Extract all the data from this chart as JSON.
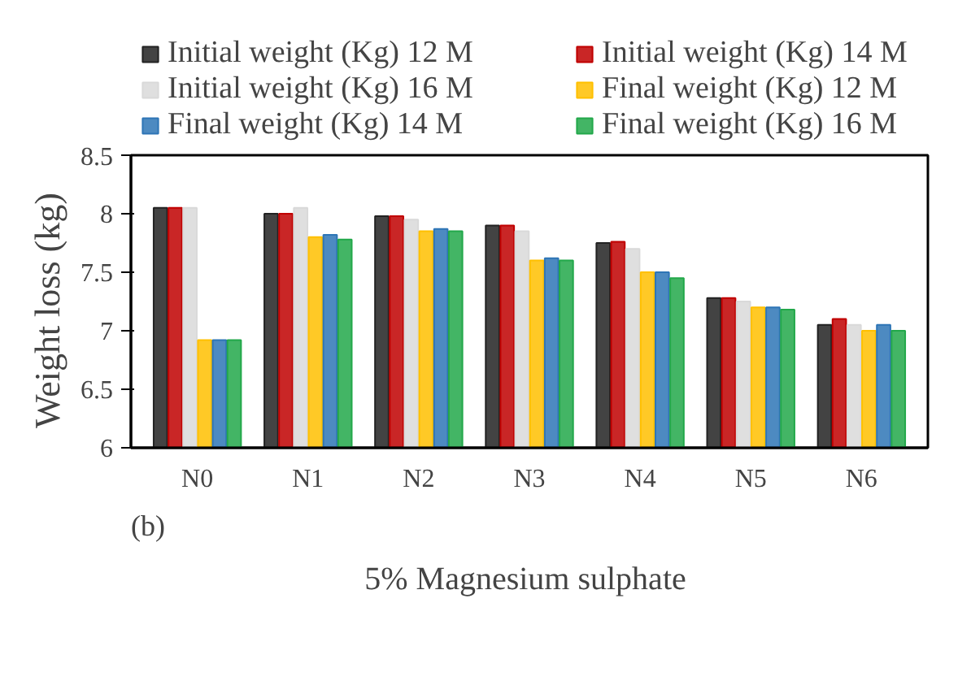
{
  "chart_data": {
    "type": "bar",
    "xlabel": "5% Magnesium  sulphate",
    "ylabel": "Weight  loss  (kg)",
    "annotations": [
      "(b)"
    ],
    "categories": [
      "N0",
      "N1",
      "N2",
      "N3",
      "N4",
      "N5",
      "N6"
    ],
    "series": [
      {
        "name": "Initial weight (Kg) 12 M",
        "color": "#222222",
        "values": [
          8.05,
          8.0,
          7.98,
          7.9,
          7.75,
          7.28,
          7.05
        ]
      },
      {
        "name": "Initial weight (Kg) 14 M",
        "color": "#c00000",
        "values": [
          8.05,
          8.0,
          7.98,
          7.9,
          7.76,
          7.28,
          7.1
        ]
      },
      {
        "name": "Initial weight (Kg) 16 M",
        "color": "#d9d9d9",
        "values": [
          8.05,
          8.05,
          7.95,
          7.85,
          7.7,
          7.25,
          7.05
        ]
      },
      {
        "name": "Final weight (Kg) 12 M",
        "color": "#ffc000",
        "values": [
          6.92,
          7.8,
          7.85,
          7.6,
          7.5,
          7.2,
          7.0
        ]
      },
      {
        "name": "Final weight (Kg) 14 M",
        "color": "#2e75b6",
        "values": [
          6.92,
          7.82,
          7.87,
          7.62,
          7.5,
          7.2,
          7.05
        ]
      },
      {
        "name": "Final weight (Kg) 16 M",
        "color": "#22a84a",
        "values": [
          6.92,
          7.78,
          7.85,
          7.6,
          7.45,
          7.18,
          7.0
        ]
      }
    ],
    "ylim": [
      6,
      8.5
    ],
    "yticks": [
      6,
      6.5,
      7,
      7.5,
      8,
      8.5
    ],
    "grid": false,
    "legend": "top"
  }
}
